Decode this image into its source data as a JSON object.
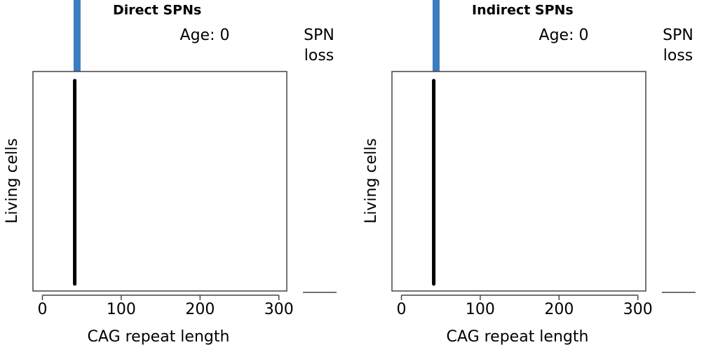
{
  "chart_data": [
    {
      "type": "distribution",
      "title": "Direct SPNs",
      "annotation": "Age: 0",
      "side_label": [
        "SPN",
        "loss"
      ],
      "xlabel": "CAG repeat length",
      "ylabel": "Living cells",
      "xlim": [
        -12,
        310
      ],
      "xticks": [
        0,
        100,
        200,
        300
      ],
      "marker_x": 44,
      "marker_color": "#3b7dbf",
      "cells_x": 41,
      "cells_color": "#000000",
      "spn_loss": 0
    },
    {
      "type": "distribution",
      "title": "Indirect SPNs",
      "annotation": "Age: 0",
      "side_label": [
        "SPN",
        "loss"
      ],
      "xlabel": "CAG repeat length",
      "ylabel": "Living cells",
      "xlim": [
        -12,
        310
      ],
      "xticks": [
        0,
        100,
        200,
        300
      ],
      "marker_x": 44,
      "marker_color": "#3b7dbf",
      "cells_x": 41,
      "cells_color": "#000000",
      "spn_loss": 0
    }
  ]
}
